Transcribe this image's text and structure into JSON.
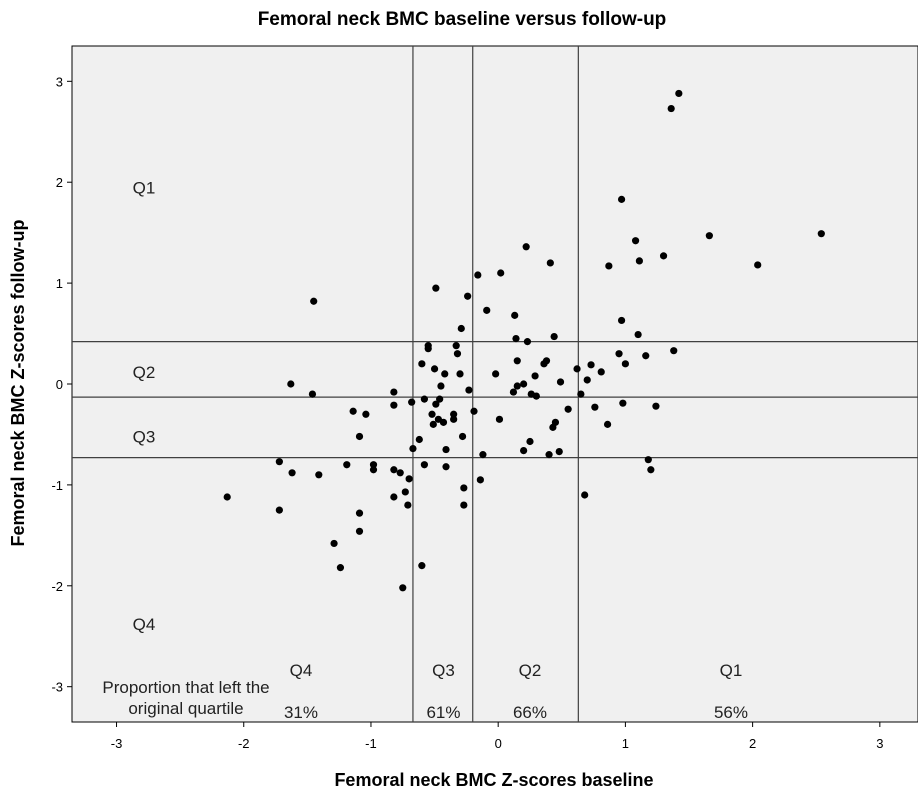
{
  "chart_data": {
    "type": "scatter",
    "title": "Femoral neck BMC baseline versus follow-up",
    "xlabel": "Femoral neck BMC Z-scores baseline",
    "ylabel": "Femoral neck BMC Z-scores follow-up",
    "xlim": [
      -3.35,
      3.3
    ],
    "ylim": [
      -3.35,
      3.35
    ],
    "xticks": [
      -3,
      -2,
      -1,
      0,
      1,
      2,
      3
    ],
    "yticks": [
      -3,
      -2,
      -1,
      0,
      1,
      2,
      3
    ],
    "grid": false,
    "colors": {
      "background": "#f0f0f0",
      "point": "#000000",
      "lines": "#404040"
    },
    "reference_lines": {
      "x": [
        -0.67,
        -0.2,
        0.63
      ],
      "y": [
        0.42,
        -0.13,
        -0.73
      ]
    },
    "y_quartile_labels": [
      {
        "text": "Q1",
        "y": 1.95
      },
      {
        "text": "Q2",
        "y": 0.12
      },
      {
        "text": "Q3",
        "y": -0.52
      },
      {
        "text": "Q4",
        "y": -2.38
      }
    ],
    "x_quartile_columns": [
      {
        "label": "Q4",
        "percent": "31%",
        "x": -1.55
      },
      {
        "label": "Q3",
        "percent": "61%",
        "x": -0.43
      },
      {
        "label": "Q2",
        "percent": "66%",
        "x": 0.25
      },
      {
        "label": "Q1",
        "percent": "56%",
        "x": 1.83
      }
    ],
    "proportion_label": [
      "Proportion that left the",
      "original quartile"
    ],
    "points": [
      [
        -2.13,
        -1.12
      ],
      [
        -1.72,
        -1.25
      ],
      [
        -1.72,
        -0.77
      ],
      [
        -1.62,
        -0.88
      ],
      [
        -1.63,
        0.0
      ],
      [
        -1.46,
        -0.1
      ],
      [
        -1.45,
        0.82
      ],
      [
        -1.41,
        -0.9
      ],
      [
        -1.29,
        -1.58
      ],
      [
        -1.24,
        -1.82
      ],
      [
        -1.19,
        -0.8
      ],
      [
        -1.14,
        -0.27
      ],
      [
        -1.09,
        -0.52
      ],
      [
        -1.09,
        -1.28
      ],
      [
        -1.09,
        -1.46
      ],
      [
        -1.04,
        -0.3
      ],
      [
        -0.98,
        -0.8
      ],
      [
        -0.98,
        -0.85
      ],
      [
        -0.82,
        -0.08
      ],
      [
        -0.82,
        -0.21
      ],
      [
        -0.82,
        -0.85
      ],
      [
        -0.82,
        -1.12
      ],
      [
        -0.77,
        -0.88
      ],
      [
        -0.75,
        -2.02
      ],
      [
        -0.73,
        -1.07
      ],
      [
        -0.71,
        -1.2
      ],
      [
        -0.7,
        -0.94
      ],
      [
        -0.68,
        -0.18
      ],
      [
        -0.67,
        -0.64
      ],
      [
        -0.62,
        -0.55
      ],
      [
        -0.6,
        -1.8
      ],
      [
        -0.6,
        0.2
      ],
      [
        -0.58,
        -0.15
      ],
      [
        -0.58,
        -0.8
      ],
      [
        -0.55,
        0.35
      ],
      [
        -0.55,
        0.38
      ],
      [
        -0.52,
        -0.3
      ],
      [
        -0.51,
        -0.4
      ],
      [
        -0.5,
        0.15
      ],
      [
        -0.49,
        -0.2
      ],
      [
        -0.49,
        0.95
      ],
      [
        -0.47,
        -0.35
      ],
      [
        -0.46,
        -0.15
      ],
      [
        -0.45,
        -0.02
      ],
      [
        -0.43,
        -0.38
      ],
      [
        -0.42,
        0.1
      ],
      [
        -0.41,
        -0.65
      ],
      [
        -0.41,
        -0.82
      ],
      [
        -0.35,
        -0.3
      ],
      [
        -0.35,
        -0.35
      ],
      [
        -0.33,
        0.38
      ],
      [
        -0.32,
        0.3
      ],
      [
        -0.3,
        0.1
      ],
      [
        -0.29,
        0.55
      ],
      [
        -0.28,
        -0.52
      ],
      [
        -0.27,
        -1.03
      ],
      [
        -0.27,
        -1.2
      ],
      [
        -0.24,
        0.87
      ],
      [
        -0.23,
        -0.06
      ],
      [
        -0.19,
        -0.27
      ],
      [
        -0.16,
        1.08
      ],
      [
        -0.14,
        -0.95
      ],
      [
        -0.12,
        -0.7
      ],
      [
        -0.09,
        0.73
      ],
      [
        -0.02,
        0.1
      ],
      [
        0.01,
        -0.35
      ],
      [
        0.02,
        1.1
      ],
      [
        0.12,
        -0.08
      ],
      [
        0.13,
        0.68
      ],
      [
        0.14,
        0.45
      ],
      [
        0.15,
        0.23
      ],
      [
        0.15,
        -0.02
      ],
      [
        0.2,
        0.0
      ],
      [
        0.2,
        -0.66
      ],
      [
        0.22,
        1.36
      ],
      [
        0.23,
        0.42
      ],
      [
        0.25,
        -0.57
      ],
      [
        0.26,
        -0.1
      ],
      [
        0.29,
        0.08
      ],
      [
        0.3,
        -0.12
      ],
      [
        0.36,
        0.2
      ],
      [
        0.38,
        0.23
      ],
      [
        0.4,
        -0.7
      ],
      [
        0.41,
        1.2
      ],
      [
        0.43,
        -0.43
      ],
      [
        0.44,
        0.47
      ],
      [
        0.45,
        -0.38
      ],
      [
        0.48,
        -0.67
      ],
      [
        0.49,
        0.02
      ],
      [
        0.55,
        -0.25
      ],
      [
        0.62,
        0.15
      ],
      [
        0.65,
        -0.1
      ],
      [
        0.68,
        -1.1
      ],
      [
        0.7,
        0.04
      ],
      [
        0.73,
        0.19
      ],
      [
        0.76,
        -0.23
      ],
      [
        0.81,
        0.12
      ],
      [
        0.86,
        -0.4
      ],
      [
        0.87,
        1.17
      ],
      [
        0.95,
        0.3
      ],
      [
        0.97,
        0.63
      ],
      [
        0.97,
        1.83
      ],
      [
        0.98,
        -0.19
      ],
      [
        1.0,
        0.2
      ],
      [
        1.08,
        1.42
      ],
      [
        1.1,
        0.49
      ],
      [
        1.11,
        1.22
      ],
      [
        1.16,
        0.28
      ],
      [
        1.18,
        -0.75
      ],
      [
        1.2,
        -0.85
      ],
      [
        1.24,
        -0.22
      ],
      [
        1.3,
        1.27
      ],
      [
        1.36,
        2.73
      ],
      [
        1.38,
        0.33
      ],
      [
        1.42,
        2.88
      ],
      [
        1.66,
        1.47
      ],
      [
        2.04,
        1.18
      ],
      [
        2.54,
        1.49
      ]
    ]
  }
}
